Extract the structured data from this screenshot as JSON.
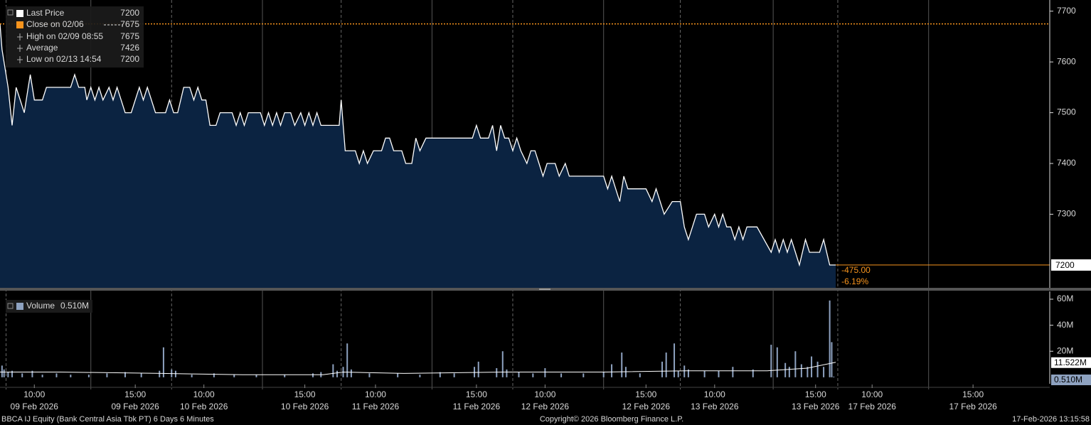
{
  "chart_data": [
    {
      "type": "area",
      "xlim": [
        0,
        520
      ],
      "ylim": [
        7155,
        7722
      ],
      "yticks": [
        7300,
        7400,
        7500,
        7600,
        7700
      ],
      "day_breaks": [
        3,
        85,
        169,
        254,
        337,
        415
      ],
      "midday_lines": [
        45,
        130,
        214,
        299,
        383,
        460
      ],
      "fill_color": "#0b2341",
      "series": [
        {
          "name": "Last Price",
          "color": "#ffffff",
          "x": [
            0,
            1,
            4,
            6,
            8,
            10,
            12,
            14,
            15,
            17,
            21,
            23,
            35,
            37,
            39,
            42,
            43,
            45,
            47,
            49,
            51,
            54,
            56,
            58,
            60,
            62,
            65,
            67,
            69,
            71,
            73,
            75,
            77,
            82,
            84,
            86,
            88,
            91,
            94,
            96,
            98,
            100,
            102,
            104,
            107,
            109,
            115,
            117,
            119,
            121,
            123,
            129,
            131,
            133,
            135,
            137,
            139,
            141,
            144,
            146,
            149,
            151,
            153,
            155,
            157,
            159,
            168,
            169,
            171,
            176,
            178,
            180,
            182,
            185,
            189,
            191,
            193,
            195,
            199,
            201,
            204,
            206,
            208,
            211,
            213,
            234,
            236,
            238,
            242,
            244,
            246,
            248,
            250,
            252,
            254,
            256,
            258,
            261,
            263,
            265,
            267,
            269,
            271,
            275,
            277,
            280,
            282,
            284,
            299,
            301,
            303,
            305,
            307,
            309,
            311,
            320,
            323,
            325,
            327,
            329,
            333,
            337,
            339,
            341,
            343,
            345,
            349,
            351,
            354,
            356,
            358,
            360,
            362,
            364,
            366,
            368,
            370,
            375,
            382,
            384,
            386,
            388,
            390,
            392,
            394,
            396,
            399,
            401,
            406,
            408,
            411,
            414
          ],
          "values": [
            7675,
            7625,
            7550,
            7475,
            7550,
            7525,
            7500,
            7550,
            7575,
            7525,
            7525,
            7550,
            7550,
            7575,
            7550,
            7550,
            7525,
            7550,
            7525,
            7550,
            7525,
            7550,
            7525,
            7550,
            7525,
            7500,
            7500,
            7525,
            7550,
            7525,
            7550,
            7525,
            7500,
            7500,
            7525,
            7500,
            7500,
            7550,
            7550,
            7525,
            7550,
            7525,
            7525,
            7475,
            7475,
            7500,
            7500,
            7475,
            7500,
            7475,
            7500,
            7500,
            7475,
            7500,
            7475,
            7500,
            7475,
            7500,
            7500,
            7475,
            7500,
            7475,
            7500,
            7475,
            7500,
            7475,
            7475,
            7525,
            7425,
            7425,
            7400,
            7425,
            7400,
            7425,
            7425,
            7450,
            7450,
            7425,
            7425,
            7400,
            7400,
            7450,
            7425,
            7450,
            7450,
            7450,
            7475,
            7450,
            7450,
            7475,
            7425,
            7475,
            7450,
            7450,
            7425,
            7450,
            7425,
            7400,
            7425,
            7425,
            7400,
            7375,
            7400,
            7400,
            7375,
            7400,
            7375,
            7375,
            7375,
            7350,
            7375,
            7350,
            7325,
            7375,
            7350,
            7350,
            7325,
            7350,
            7325,
            7300,
            7325,
            7325,
            7275,
            7250,
            7275,
            7300,
            7300,
            7275,
            7300,
            7275,
            7300,
            7275,
            7275,
            7250,
            7275,
            7250,
            7275,
            7275,
            7225,
            7250,
            7225,
            7250,
            7225,
            7250,
            7225,
            7200,
            7250,
            7225,
            7225,
            7250,
            7200,
            7200
          ]
        }
      ],
      "last_price": 7200,
      "legend": [
        {
          "label": "Close on 02/06",
          "value": 7675,
          "color": "#f7941d"
        },
        {
          "label": "High on 02/09 08:55",
          "value": 7675
        },
        {
          "label": "Average",
          "value": 7426
        },
        {
          "label": "Low on 02/13 14:54",
          "value": 7200
        }
      ],
      "change": {
        "value": -475,
        "label": "-475.00"
      },
      "change_pct": {
        "value": -6.19,
        "label": "-6.19%"
      },
      "accent_color": "#f7941d"
    },
    {
      "type": "bar",
      "xlim": [
        0,
        520
      ],
      "ylim": [
        -5000000,
        66000000
      ],
      "yticks": [
        {
          "value": 20000000,
          "label": "20M"
        },
        {
          "value": 40000000,
          "label": "40M"
        },
        {
          "value": 60000000,
          "label": "60M"
        }
      ],
      "xticks": [
        {
          "value": 17,
          "label": "10:00"
        },
        {
          "value": 67,
          "label": "15:00"
        },
        {
          "value": 101,
          "label": "10:00"
        },
        {
          "value": 151,
          "label": "15:00"
        },
        {
          "value": 186,
          "label": "10:00"
        },
        {
          "value": 236,
          "label": "15:00"
        },
        {
          "value": 270,
          "label": "10:00"
        },
        {
          "value": 320,
          "label": "15:00"
        },
        {
          "value": 354,
          "label": "10:00"
        },
        {
          "value": 404,
          "label": "15:00"
        },
        {
          "value": 432,
          "label": "10:00"
        },
        {
          "value": 482,
          "label": "15:00"
        }
      ],
      "xtick_dates": [
        "09 Feb 2026",
        "09 Feb 2026",
        "10 Feb 2026",
        "10 Feb 2026",
        "11 Feb 2026",
        "11 Feb 2026",
        "12 Feb 2026",
        "12 Feb 2026",
        "13 Feb 2026",
        "13 Feb 2026",
        "17 Feb 2026",
        "17 Feb 2026"
      ],
      "series": [
        {
          "name": "Volume",
          "color": "#8ea2c0",
          "x": [
            1,
            2,
            4,
            6,
            11,
            16,
            21,
            28,
            35,
            44,
            53,
            62,
            70,
            79,
            81,
            85,
            87,
            95,
            106,
            116,
            127,
            141,
            155,
            159,
            165,
            167,
            170,
            172,
            174,
            183,
            197,
            208,
            218,
            225,
            235,
            237,
            246,
            249,
            251,
            257,
            264,
            270,
            278,
            289,
            299,
            303,
            308,
            310,
            317,
            328,
            330,
            334,
            336,
            339,
            341,
            349,
            356,
            363,
            373,
            382,
            385,
            389,
            391,
            394,
            397,
            400,
            402,
            405,
            408,
            411,
            412,
            413
          ],
          "values": [
            9000000,
            6000000,
            4000000,
            5000000,
            3000000,
            5000000,
            2000000,
            3000000,
            2000000,
            2000000,
            3000000,
            4000000,
            3000000,
            5000000,
            23000000,
            6000000,
            5000000,
            2000000,
            3000000,
            2000000,
            2000000,
            2000000,
            3000000,
            4000000,
            10000000,
            5000000,
            8000000,
            26000000,
            6000000,
            3000000,
            3000000,
            2000000,
            4000000,
            3000000,
            8000000,
            12000000,
            7000000,
            20000000,
            6000000,
            4000000,
            3000000,
            7000000,
            3000000,
            3000000,
            4000000,
            10000000,
            19000000,
            8000000,
            3000000,
            12000000,
            19000000,
            26000000,
            5000000,
            9000000,
            6000000,
            5000000,
            5000000,
            8000000,
            6000000,
            25000000,
            23000000,
            11000000,
            8000000,
            20000000,
            10000000,
            8000000,
            16000000,
            12000000,
            8000000,
            59000000,
            27000000,
            510000
          ],
          "last": {
            "value": 510000,
            "label": "0.510M"
          }
        },
        {
          "type": "line",
          "color": "#ffffff",
          "x": [
            0,
            30,
            80,
            120,
            160,
            170,
            200,
            250,
            300,
            340,
            380,
            400,
            414
          ],
          "values": [
            4000000,
            4000000,
            3000000,
            2000000,
            2000000,
            4000000,
            3000000,
            4000000,
            4000000,
            5000000,
            5000000,
            7000000,
            11522000
          ],
          "last": {
            "value": 11522000,
            "label": "11.522M"
          }
        }
      ]
    }
  ],
  "footer": {
    "left": "BBCA IJ Equity (Bank Central Asia Tbk PT) 6 Days 6 Minutes",
    "center": "Copyright© 2026 Bloomberg Finance L.P.",
    "right": "17-Feb-2026 13:15:58"
  }
}
